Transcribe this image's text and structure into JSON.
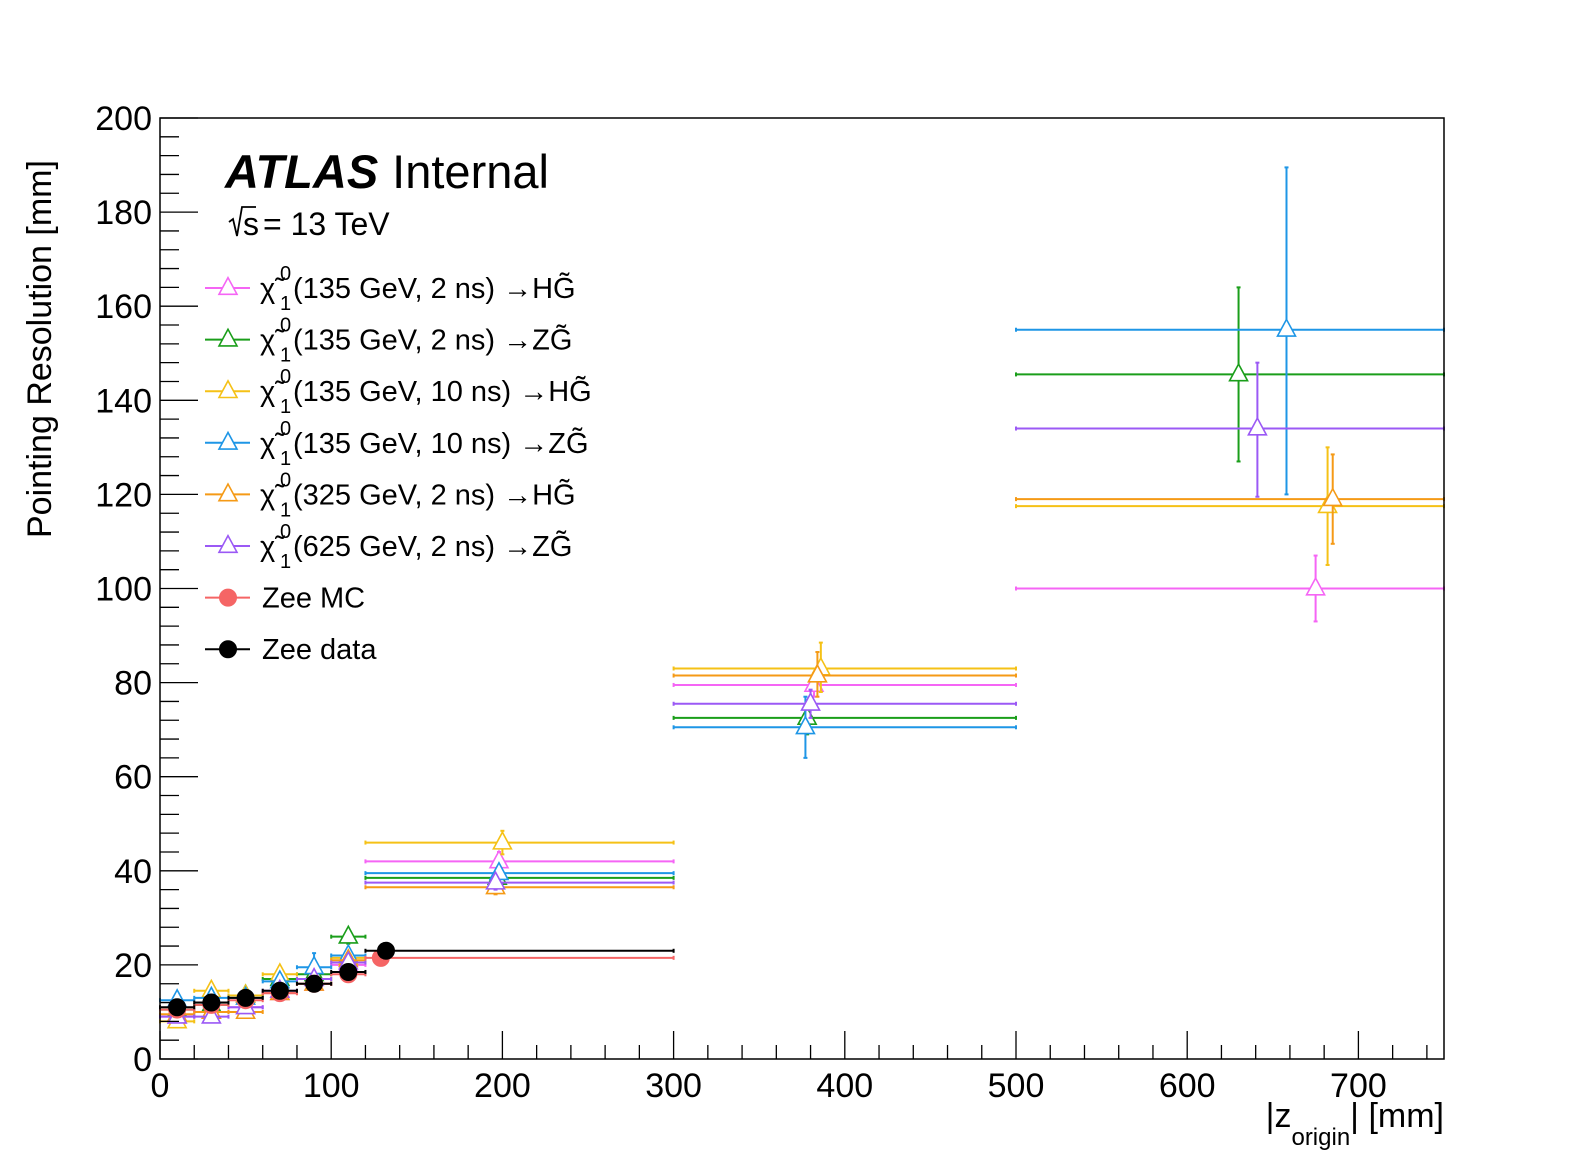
{
  "chart_data": {
    "type": "scatter",
    "title": "",
    "experiment": "ATLAS",
    "status": "Internal",
    "energy": "13 TeV",
    "energy_prefix": "s",
    "xlabel_pre": "|z",
    "xlabel_sub": "origin",
    "xlabel_post": "| [mm]",
    "ylabel": "Pointing Resolution [mm]",
    "xlim": [
      0,
      750
    ],
    "ylim": [
      0,
      200
    ],
    "x_ticks": [
      0,
      100,
      200,
      300,
      400,
      500,
      600,
      700
    ],
    "y_ticks": [
      0,
      20,
      40,
      60,
      80,
      100,
      120,
      140,
      160,
      180,
      200
    ],
    "legend_position": "top-left",
    "series": [
      {
        "name": "(135 GeV, 2 ns) →HG̃",
        "color": "#f565f5",
        "marker": "open-triangle",
        "points": [
          {
            "x": 10,
            "xlo": 0,
            "xhi": 20,
            "y": 9,
            "ylo": 8,
            "yhi": 10
          },
          {
            "x": 30,
            "xlo": 20,
            "xhi": 40,
            "y": 10,
            "ylo": 9,
            "yhi": 11
          },
          {
            "x": 50,
            "xlo": 40,
            "xhi": 60,
            "y": 11,
            "ylo": 10,
            "yhi": 12
          },
          {
            "x": 70,
            "xlo": 60,
            "xhi": 80,
            "y": 14,
            "ylo": 13,
            "yhi": 15
          },
          {
            "x": 90,
            "xlo": 80,
            "xhi": 100,
            "y": 16,
            "ylo": 15,
            "yhi": 17
          },
          {
            "x": 110,
            "xlo": 100,
            "xhi": 120,
            "y": 20,
            "ylo": 19,
            "yhi": 21
          },
          {
            "x": 198,
            "xlo": 120,
            "xhi": 300,
            "y": 42,
            "ylo": 40,
            "yhi": 44
          },
          {
            "x": 382,
            "xlo": 300,
            "xhi": 500,
            "y": 79.5,
            "ylo": 77,
            "yhi": 82
          },
          {
            "x": 675,
            "xlo": 500,
            "xhi": 750,
            "y": 100,
            "ylo": 93,
            "yhi": 107
          }
        ]
      },
      {
        "name": "(135 GeV, 2 ns) →ZG̃",
        "color": "#1a9e1a",
        "marker": "open-triangle",
        "points": [
          {
            "x": 10,
            "xlo": 0,
            "xhi": 20,
            "y": 10.5,
            "ylo": 9.5,
            "yhi": 11.5
          },
          {
            "x": 30,
            "xlo": 20,
            "xhi": 40,
            "y": 11.5,
            "ylo": 10.5,
            "yhi": 12.5
          },
          {
            "x": 50,
            "xlo": 40,
            "xhi": 60,
            "y": 13.5,
            "ylo": 12.5,
            "yhi": 14.5
          },
          {
            "x": 70,
            "xlo": 60,
            "xhi": 80,
            "y": 17,
            "ylo": 16,
            "yhi": 18
          },
          {
            "x": 90,
            "xlo": 80,
            "xhi": 100,
            "y": 18,
            "ylo": 17,
            "yhi": 19
          },
          {
            "x": 110,
            "xlo": 100,
            "xhi": 120,
            "y": 26,
            "ylo": 24.5,
            "yhi": 27.5
          },
          {
            "x": 197,
            "xlo": 120,
            "xhi": 300,
            "y": 38.5,
            "ylo": 37,
            "yhi": 40
          },
          {
            "x": 378,
            "xlo": 300,
            "xhi": 500,
            "y": 72.5,
            "ylo": 69,
            "yhi": 76
          },
          {
            "x": 630,
            "xlo": 500,
            "xhi": 750,
            "y": 145.5,
            "ylo": 127,
            "yhi": 164
          }
        ]
      },
      {
        "name": "(135 GeV, 10 ns) →HG̃",
        "color": "#f5c116",
        "marker": "open-triangle",
        "points": [
          {
            "x": 10,
            "xlo": 0,
            "xhi": 20,
            "y": 8,
            "ylo": 7,
            "yhi": 9
          },
          {
            "x": 30,
            "xlo": 20,
            "xhi": 40,
            "y": 14.5,
            "ylo": 13,
            "yhi": 16
          },
          {
            "x": 50,
            "xlo": 40,
            "xhi": 60,
            "y": 13.5,
            "ylo": 12.5,
            "yhi": 14.5
          },
          {
            "x": 70,
            "xlo": 60,
            "xhi": 80,
            "y": 18,
            "ylo": 16.5,
            "yhi": 19.5
          },
          {
            "x": 90,
            "xlo": 80,
            "xhi": 100,
            "y": 17,
            "ylo": 15.5,
            "yhi": 18.5
          },
          {
            "x": 110,
            "xlo": 100,
            "xhi": 120,
            "y": 21.5,
            "ylo": 20,
            "yhi": 23
          },
          {
            "x": 200,
            "xlo": 120,
            "xhi": 300,
            "y": 46,
            "ylo": 43.5,
            "yhi": 48.5
          },
          {
            "x": 386,
            "xlo": 300,
            "xhi": 500,
            "y": 83,
            "ylo": 78,
            "yhi": 88.5
          },
          {
            "x": 682,
            "xlo": 500,
            "xhi": 750,
            "y": 117.5,
            "ylo": 105,
            "yhi": 130
          }
        ]
      },
      {
        "name": "(135 GeV, 10 ns) →ZG̃",
        "color": "#1e96e6",
        "marker": "open-triangle",
        "points": [
          {
            "x": 10,
            "xlo": 0,
            "xhi": 20,
            "y": 12.5,
            "ylo": 11.5,
            "yhi": 13.5
          },
          {
            "x": 30,
            "xlo": 20,
            "xhi": 40,
            "y": 13,
            "ylo": 12,
            "yhi": 14
          },
          {
            "x": 50,
            "xlo": 40,
            "xhi": 60,
            "y": 13,
            "ylo": 12,
            "yhi": 14
          },
          {
            "x": 70,
            "xlo": 60,
            "xhi": 80,
            "y": 16.5,
            "ylo": 15,
            "yhi": 18
          },
          {
            "x": 90,
            "xlo": 80,
            "xhi": 100,
            "y": 19.5,
            "ylo": 17,
            "yhi": 22.5
          },
          {
            "x": 110,
            "xlo": 100,
            "xhi": 120,
            "y": 22,
            "ylo": 20.5,
            "yhi": 23.5
          },
          {
            "x": 198,
            "xlo": 120,
            "xhi": 300,
            "y": 39.5,
            "ylo": 38,
            "yhi": 41
          },
          {
            "x": 377,
            "xlo": 300,
            "xhi": 500,
            "y": 70.5,
            "ylo": 64,
            "yhi": 77
          },
          {
            "x": 658,
            "xlo": 500,
            "xhi": 750,
            "y": 155,
            "ylo": 120,
            "yhi": 189.5
          }
        ]
      },
      {
        "name": "(325 GeV, 2 ns) →HG̃",
        "color": "#f59a16",
        "marker": "open-triangle",
        "points": [
          {
            "x": 10,
            "xlo": 0,
            "xhi": 20,
            "y": 9.5,
            "ylo": 8.5,
            "yhi": 10.5
          },
          {
            "x": 30,
            "xlo": 20,
            "xhi": 40,
            "y": 10,
            "ylo": 9,
            "yhi": 11
          },
          {
            "x": 50,
            "xlo": 40,
            "xhi": 60,
            "y": 10,
            "ylo": 9,
            "yhi": 11
          },
          {
            "x": 70,
            "xlo": 60,
            "xhi": 80,
            "y": 14,
            "ylo": 13,
            "yhi": 15
          },
          {
            "x": 90,
            "xlo": 80,
            "xhi": 100,
            "y": 16,
            "ylo": 15,
            "yhi": 17
          },
          {
            "x": 110,
            "xlo": 100,
            "xhi": 120,
            "y": 21,
            "ylo": 20,
            "yhi": 22
          },
          {
            "x": 196,
            "xlo": 120,
            "xhi": 300,
            "y": 36.5,
            "ylo": 35,
            "yhi": 38
          },
          {
            "x": 384,
            "xlo": 300,
            "xhi": 500,
            "y": 81.5,
            "ylo": 77,
            "yhi": 86.5
          },
          {
            "x": 685,
            "xlo": 500,
            "xhi": 750,
            "y": 119,
            "ylo": 109.5,
            "yhi": 128.5
          }
        ]
      },
      {
        "name": "(625 GeV, 2 ns) →ZG̃",
        "color": "#9b59f5",
        "marker": "open-triangle",
        "points": [
          {
            "x": 10,
            "xlo": 0,
            "xhi": 20,
            "y": 9,
            "ylo": 8,
            "yhi": 10
          },
          {
            "x": 30,
            "xlo": 20,
            "xhi": 40,
            "y": 9,
            "ylo": 8,
            "yhi": 10
          },
          {
            "x": 50,
            "xlo": 40,
            "xhi": 60,
            "y": 11,
            "ylo": 10,
            "yhi": 12
          },
          {
            "x": 70,
            "xlo": 60,
            "xhi": 80,
            "y": 14.5,
            "ylo": 13.5,
            "yhi": 15.5
          },
          {
            "x": 90,
            "xlo": 80,
            "xhi": 100,
            "y": 17,
            "ylo": 16,
            "yhi": 18
          },
          {
            "x": 110,
            "xlo": 100,
            "xhi": 120,
            "y": 20.5,
            "ylo": 19.5,
            "yhi": 21.5
          },
          {
            "x": 196,
            "xlo": 120,
            "xhi": 300,
            "y": 37.5,
            "ylo": 36,
            "yhi": 39
          },
          {
            "x": 380,
            "xlo": 300,
            "xhi": 500,
            "y": 75.5,
            "ylo": 72.5,
            "yhi": 78.5
          },
          {
            "x": 641,
            "xlo": 500,
            "xhi": 750,
            "y": 134,
            "ylo": 119.5,
            "yhi": 148
          }
        ]
      },
      {
        "name": "Zee MC",
        "color": "#f56565",
        "marker": "filled-circle",
        "points": [
          {
            "x": 10,
            "xlo": 0,
            "xhi": 20,
            "y": 10.5,
            "ylo": 10.2,
            "yhi": 10.8
          },
          {
            "x": 30,
            "xlo": 20,
            "xhi": 40,
            "y": 11.5,
            "ylo": 11.2,
            "yhi": 11.8
          },
          {
            "x": 50,
            "xlo": 40,
            "xhi": 60,
            "y": 12.5,
            "ylo": 12.2,
            "yhi": 12.8
          },
          {
            "x": 70,
            "xlo": 60,
            "xhi": 80,
            "y": 14,
            "ylo": 13.7,
            "yhi": 14.3
          },
          {
            "x": 90,
            "xlo": 80,
            "xhi": 100,
            "y": 16,
            "ylo": 15.7,
            "yhi": 16.3
          },
          {
            "x": 110,
            "xlo": 100,
            "xhi": 120,
            "y": 18,
            "ylo": 17.7,
            "yhi": 18.3
          },
          {
            "x": 129,
            "xlo": 120,
            "xhi": 300,
            "y": 21.5,
            "ylo": 21.2,
            "yhi": 21.8
          }
        ]
      },
      {
        "name": "Zee data",
        "color": "#000000",
        "marker": "filled-circle",
        "points": [
          {
            "x": 10,
            "xlo": 0,
            "xhi": 20,
            "y": 11,
            "ylo": 10.7,
            "yhi": 11.3
          },
          {
            "x": 30,
            "xlo": 20,
            "xhi": 40,
            "y": 12,
            "ylo": 11.7,
            "yhi": 12.3
          },
          {
            "x": 50,
            "xlo": 40,
            "xhi": 60,
            "y": 13,
            "ylo": 12.7,
            "yhi": 13.3
          },
          {
            "x": 70,
            "xlo": 60,
            "xhi": 80,
            "y": 14.5,
            "ylo": 14.2,
            "yhi": 14.8
          },
          {
            "x": 90,
            "xlo": 80,
            "xhi": 100,
            "y": 16,
            "ylo": 15.7,
            "yhi": 16.3
          },
          {
            "x": 110,
            "xlo": 100,
            "xhi": 120,
            "y": 18.5,
            "ylo": 18.2,
            "yhi": 18.8
          },
          {
            "x": 132,
            "xlo": 120,
            "xhi": 300,
            "y": 23,
            "ylo": 22.7,
            "yhi": 23.3
          }
        ]
      }
    ]
  }
}
